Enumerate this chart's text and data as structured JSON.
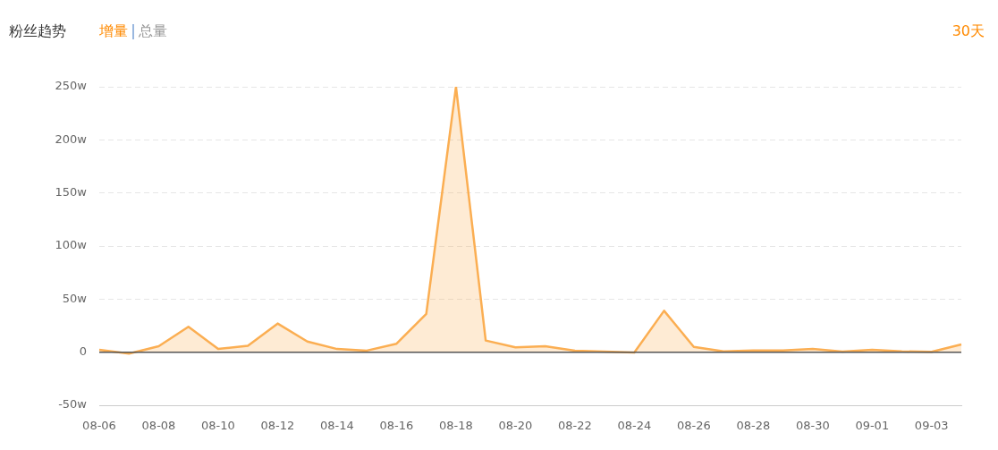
{
  "chart_data": {
    "type": "area",
    "title": "粉丝趋势",
    "annotations": [
      "增量",
      "总量",
      "30天"
    ],
    "categories": [
      "08-06",
      null,
      "08-08",
      null,
      "08-10",
      null,
      "08-12",
      null,
      "08-14",
      null,
      "08-16",
      null,
      "08-18",
      null,
      "08-20",
      null,
      "08-22",
      null,
      "08-24",
      null,
      "08-26",
      null,
      "08-28",
      null,
      "08-30",
      null,
      "09-01",
      null,
      "09-03",
      null
    ],
    "series": [
      {
        "color": "#fbae52",
        "values": [
          2.2,
          -1.3,
          5.6,
          24,
          3,
          6,
          27,
          10,
          3,
          1.5,
          8,
          36,
          250,
          11,
          4.5,
          5.6,
          1.4,
          0.5,
          -0.3,
          39,
          5,
          0.8,
          1.7,
          1.7,
          3,
          0.6,
          2.2,
          0.8,
          0.3,
          7.3
        ]
      }
    ],
    "ylim": [
      -50,
      250
    ],
    "yticks": [
      {
        "value": -50,
        "label": "-50w"
      },
      0,
      {
        "value": 50,
        "label": "50w"
      },
      {
        "value": 100,
        "label": "100w"
      },
      {
        "value": 150,
        "label": "150w"
      },
      {
        "value": 200,
        "label": "200w"
      },
      {
        "value": 250,
        "label": "250w"
      }
    ],
    "ref_lines": [
      {
        "axis": "y",
        "value": 0,
        "color": "#555555"
      }
    ],
    "grid": "y",
    "legend": false,
    "marker": "none",
    "line_style": "solid"
  }
}
